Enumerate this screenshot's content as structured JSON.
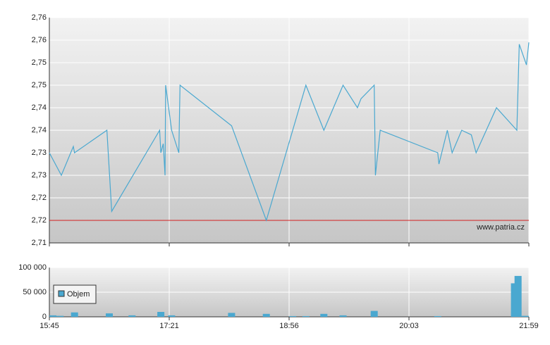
{
  "chart_data": [
    {
      "type": "line",
      "xlim": [
        0,
        4
      ],
      "xticks": [
        0,
        1,
        2,
        3,
        4
      ],
      "ylim": [
        2.71,
        2.76
      ],
      "yticks": [
        {
          "value": 2.71,
          "label": "2,71"
        },
        {
          "value": 2.715,
          "label": "2,72"
        },
        {
          "value": 2.72,
          "label": "2,72"
        },
        {
          "value": 2.725,
          "label": "2,73"
        },
        {
          "value": 2.73,
          "label": "2,73"
        },
        {
          "value": 2.735,
          "label": "2,74"
        },
        {
          "value": 2.74,
          "label": "2,74"
        },
        {
          "value": 2.745,
          "label": "2,75"
        },
        {
          "value": 2.75,
          "label": "2,75"
        },
        {
          "value": 2.755,
          "label": "2,76"
        },
        {
          "value": 2.76,
          "label": "2,76"
        }
      ],
      "grid": true,
      "reference_line": 2.715,
      "reference_color": "#d42020",
      "annotation": "www.patria.cz",
      "series": [
        {
          "color": "#4aa8d0",
          "x": [
            0,
            0.1,
            0.2,
            0.21,
            0.48,
            0.52,
            0.92,
            0.93,
            0.95,
            0.965,
            0.97,
            1.02,
            1.08,
            1.09,
            1.52,
            1.81,
            2.14,
            2.29,
            2.45,
            2.57,
            2.6,
            2.71,
            2.72,
            2.76,
            3.24,
            3.25,
            3.32,
            3.36,
            3.44,
            3.52,
            3.56,
            3.73,
            3.9,
            3.92,
            3.98,
            4
          ],
          "values": [
            2.73,
            2.725,
            2.7314,
            2.73,
            2.735,
            2.717,
            2.735,
            2.73,
            2.732,
            2.725,
            2.745,
            2.735,
            2.73,
            2.745,
            2.736,
            2.715,
            2.745,
            2.735,
            2.745,
            2.74,
            2.742,
            2.745,
            2.725,
            2.735,
            2.73,
            2.7275,
            2.735,
            2.73,
            2.735,
            2.734,
            2.73,
            2.74,
            2.735,
            2.7541,
            2.7495,
            2.7545
          ]
        }
      ]
    },
    {
      "type": "bar",
      "xlim": [
        0,
        4
      ],
      "xticks": [
        {
          "value": 0,
          "label": "15:45"
        },
        {
          "value": 1,
          "label": "17:21"
        },
        {
          "value": 2,
          "label": "18:56"
        },
        {
          "value": 3,
          "label": "20:03"
        },
        {
          "value": 4,
          "label": "21:59"
        }
      ],
      "ylim": [
        0,
        100000
      ],
      "yticks": [
        {
          "value": 0,
          "label": "0"
        },
        {
          "value": 50000,
          "label": "50 000"
        },
        {
          "value": 100000,
          "label": "100 000"
        }
      ],
      "grid": true,
      "legend": "top-left",
      "series": [
        {
          "name": "Objem",
          "color": "#4aa8d0",
          "x": [
            0.03,
            0.09,
            0.21,
            0.5,
            0.69,
            0.93,
            1.02,
            1.52,
            1.81,
            2.03,
            2.14,
            2.29,
            2.45,
            2.71,
            3.24,
            3.88,
            3.91,
            3.97
          ],
          "values": [
            3000,
            2000,
            9000,
            7000,
            3000,
            10000,
            3000,
            8000,
            6000,
            1500,
            1500,
            6000,
            3000,
            12000,
            1500,
            68000,
            83000,
            2000
          ]
        }
      ]
    }
  ]
}
